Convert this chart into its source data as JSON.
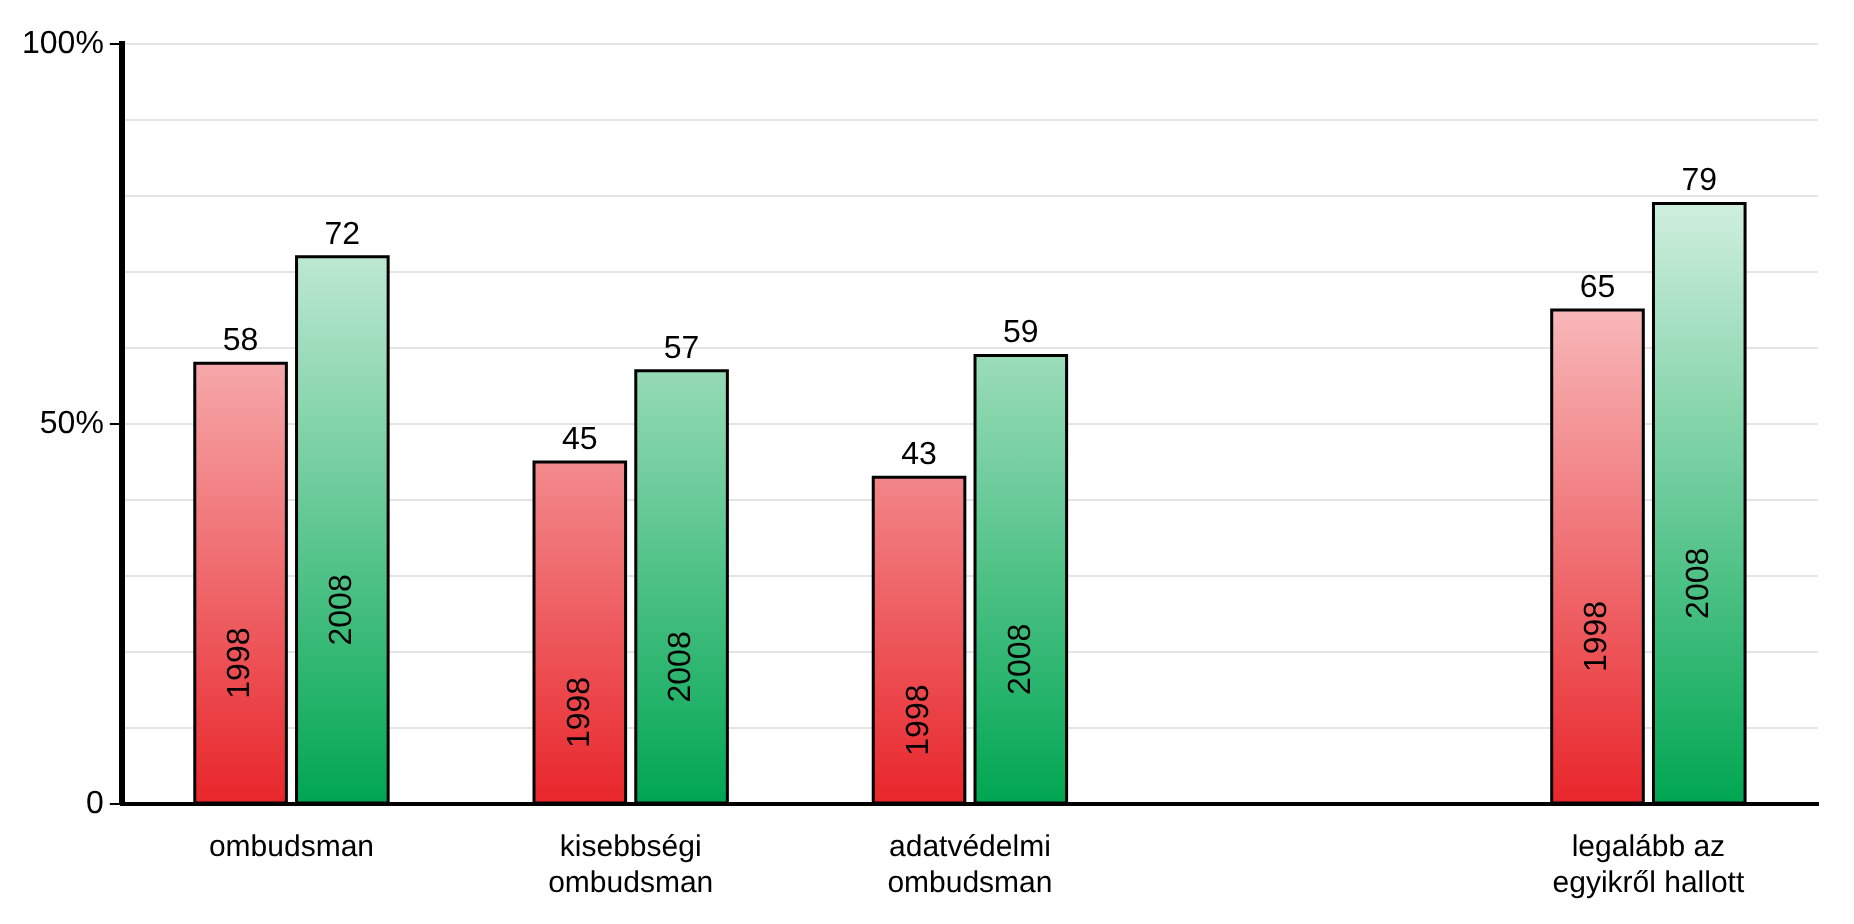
{
  "chart_data": {
    "type": "bar",
    "categories": [
      "ombudsman",
      "kisebbségi ombudsman",
      "adatvédelmi ombudsman",
      null,
      "legalább az egyikről hallott"
    ],
    "series": [
      {
        "name": "1998",
        "color": "#e8262b",
        "values": [
          58,
          45,
          43,
          null,
          65
        ]
      },
      {
        "name": "2008",
        "color": "#00a651",
        "values": [
          72,
          57,
          59,
          null,
          79
        ]
      }
    ],
    "ylim": [
      0,
      100
    ],
    "yticks": [
      {
        "value": 0,
        "label": "0"
      },
      {
        "value": 10,
        "label": null
      },
      {
        "value": 20,
        "label": null
      },
      {
        "value": 30,
        "label": null
      },
      {
        "value": 40,
        "label": null
      },
      {
        "value": 50,
        "label": "50%"
      },
      {
        "value": 60,
        "label": null
      },
      {
        "value": 70,
        "label": null
      },
      {
        "value": 80,
        "label": null
      },
      {
        "value": 90,
        "label": null
      },
      {
        "value": 100,
        "label": "100%"
      }
    ],
    "grid": "y",
    "legend": false,
    "data_labels": true
  }
}
